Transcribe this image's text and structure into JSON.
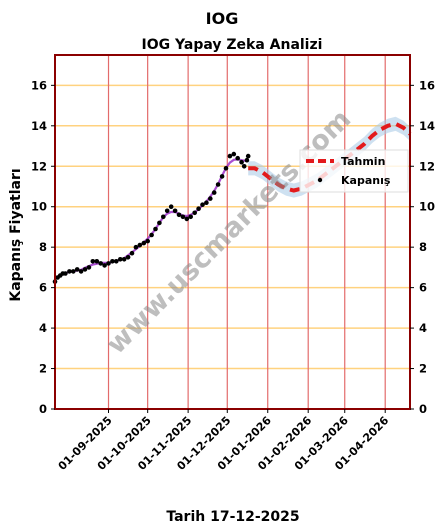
{
  "header": {
    "title": "IOG",
    "subtitle": "IOG Yapay Zeka Analizi"
  },
  "chart_data": {
    "type": "line",
    "title": "IOG Yapay Zeka Analizi",
    "xlabel": "Tarih 17-12-2025",
    "ylabel": "Kapanış Fiyatları",
    "x_range": [
      "2025-07-22",
      "2026-04-20"
    ],
    "ylim": [
      0,
      17.5
    ],
    "y_ticks": [
      0,
      2,
      4,
      6,
      8,
      10,
      12,
      14,
      16
    ],
    "x_ticks": [
      "2025-09-01",
      "2025-10-01",
      "2025-11-01",
      "2025-12-01",
      "2026-01-01",
      "2026-02-01",
      "2026-03-01",
      "2026-04-01"
    ],
    "x_tick_labels": [
      "01-09-2025",
      "01-10-2025",
      "01-11-2025",
      "01-12-2025",
      "01-01-2026",
      "01-02-2026",
      "01-03-2026",
      "01-04-2026"
    ],
    "grid": true,
    "legend_position": "right",
    "watermark": "www.uscmarkets.com",
    "colors": {
      "frame": "#8b0000",
      "vgrid": "#e36b6b",
      "hgrid": "#ffd27f",
      "forecast": "#e31a1c",
      "band": "#a6c8e6",
      "trend": "#9b30c8",
      "points": "#000000"
    },
    "series": [
      {
        "name": "Kapanış",
        "style": "points",
        "x": [
          "2025-07-22",
          "2025-07-24",
          "2025-07-26",
          "2025-07-28",
          "2025-07-30",
          "2025-08-02",
          "2025-08-05",
          "2025-08-08",
          "2025-08-11",
          "2025-08-14",
          "2025-08-17",
          "2025-08-20",
          "2025-08-23",
          "2025-08-26",
          "2025-08-29",
          "2025-09-01",
          "2025-09-04",
          "2025-09-07",
          "2025-09-10",
          "2025-09-13",
          "2025-09-16",
          "2025-09-19",
          "2025-09-22",
          "2025-09-25",
          "2025-09-28",
          "2025-10-01",
          "2025-10-04",
          "2025-10-07",
          "2025-10-10",
          "2025-10-13",
          "2025-10-16",
          "2025-10-19",
          "2025-10-22",
          "2025-10-25",
          "2025-10-28",
          "2025-10-31",
          "2025-11-03",
          "2025-11-06",
          "2025-11-09",
          "2025-11-12",
          "2025-11-15",
          "2025-11-18",
          "2025-11-21",
          "2025-11-24",
          "2025-11-27",
          "2025-11-30",
          "2025-12-03",
          "2025-12-06",
          "2025-12-09",
          "2025-12-12",
          "2025-12-14",
          "2025-12-16",
          "2025-12-17"
        ],
        "y": [
          6.3,
          6.5,
          6.6,
          6.7,
          6.7,
          6.8,
          6.8,
          6.9,
          6.8,
          6.9,
          7.0,
          7.3,
          7.3,
          7.2,
          7.1,
          7.2,
          7.3,
          7.3,
          7.4,
          7.4,
          7.5,
          7.7,
          8.0,
          8.1,
          8.2,
          8.3,
          8.6,
          8.9,
          9.2,
          9.5,
          9.8,
          10.0,
          9.8,
          9.6,
          9.5,
          9.4,
          9.5,
          9.7,
          9.9,
          10.1,
          10.2,
          10.4,
          10.7,
          11.1,
          11.5,
          11.9,
          12.5,
          12.6,
          12.4,
          12.2,
          12.0,
          12.3,
          12.5
        ]
      },
      {
        "name": "Tahmin",
        "style": "dashed",
        "x": [
          "2025-12-17",
          "2025-12-22",
          "2025-12-28",
          "2026-01-03",
          "2026-01-09",
          "2026-01-15",
          "2026-01-21",
          "2026-01-27",
          "2026-02-02",
          "2026-02-08",
          "2026-02-14",
          "2026-02-20",
          "2026-02-26",
          "2026-03-04",
          "2026-03-10",
          "2026-03-16",
          "2026-03-22",
          "2026-03-28",
          "2026-04-03",
          "2026-04-09",
          "2026-04-15",
          "2026-04-20"
        ],
        "y": [
          11.9,
          11.9,
          11.7,
          11.4,
          11.1,
          10.9,
          10.8,
          10.9,
          11.1,
          11.3,
          11.6,
          11.9,
          12.2,
          12.5,
          12.8,
          13.1,
          13.5,
          13.8,
          14.0,
          14.1,
          13.9,
          13.6
        ]
      }
    ],
    "legend": [
      "Tahmin",
      "Kapanış"
    ]
  }
}
